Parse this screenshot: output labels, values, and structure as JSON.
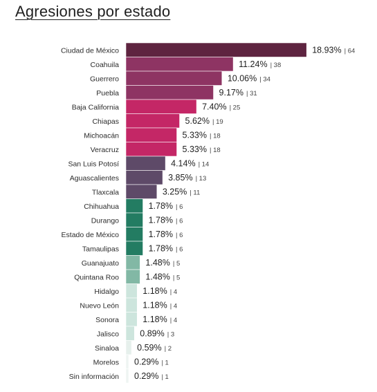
{
  "title": "Agresiones por estado",
  "chart_data": {
    "type": "bar",
    "orientation": "horizontal",
    "title": "Agresiones por estado",
    "categories": [
      "Ciudad de México",
      "Coahuila",
      "Guerrero",
      "Puebla",
      "Baja California",
      "Chiapas",
      "Michoacán",
      "Veracruz",
      "San Luis Potosí",
      "Aguascalientes",
      "Tlaxcala",
      "Chihuahua",
      "Durango",
      "Estado de México",
      "Tamaulipas",
      "Guanajuato",
      "Quintana Roo",
      "Hidalgo",
      "Nuevo León",
      "Sonora",
      "Jalisco",
      "Sinaloa",
      "Morelos",
      "Sin información"
    ],
    "values": [
      18.93,
      11.24,
      10.06,
      9.17,
      7.4,
      5.62,
      5.33,
      5.33,
      4.14,
      3.85,
      3.25,
      1.78,
      1.78,
      1.78,
      1.78,
      1.48,
      1.48,
      1.18,
      1.18,
      1.18,
      0.89,
      0.59,
      0.29,
      0.29
    ],
    "value_labels": [
      "18.93%",
      "11.24%",
      "10.06%",
      "9.17%",
      "7.40%",
      "5.62%",
      "5.33%",
      "5.33%",
      "4.14%",
      "3.85%",
      "3.25%",
      "1.78%",
      "1.78%",
      "1.78%",
      "1.78%",
      "1.48%",
      "1.48%",
      "1.18%",
      "1.18%",
      "1.18%",
      "0.89%",
      "0.59%",
      "0.29%",
      "0.29%"
    ],
    "counts": [
      64,
      38,
      34,
      31,
      25,
      19,
      18,
      18,
      14,
      13,
      11,
      6,
      6,
      6,
      6,
      5,
      5,
      4,
      4,
      4,
      3,
      2,
      1,
      1
    ],
    "count_labels": [
      "| 64",
      "| 38",
      "| 34",
      "| 31",
      "| 25",
      "| 19",
      "| 18",
      "| 18",
      "| 14",
      "| 13",
      "| 11",
      "| 6",
      "| 6",
      "| 6",
      "| 6",
      "| 5",
      "| 5",
      "| 4",
      "| 4",
      "| 4",
      "| 3",
      "| 2",
      "| 1",
      "| 1"
    ],
    "colors": [
      "#5e2440",
      "#8e3463",
      "#8e3463",
      "#8e3463",
      "#c42766",
      "#c42766",
      "#c42766",
      "#c42766",
      "#5e4a68",
      "#5e4a68",
      "#5e4a68",
      "#237c62",
      "#237c62",
      "#237c62",
      "#237c62",
      "#82b8a5",
      "#82b8a5",
      "#cde5dd",
      "#cde5dd",
      "#cde5dd",
      "#cde5dd",
      "#e6f0ec",
      "#eef4f2",
      "#eef4f2"
    ],
    "grid": false,
    "legend": "none"
  }
}
